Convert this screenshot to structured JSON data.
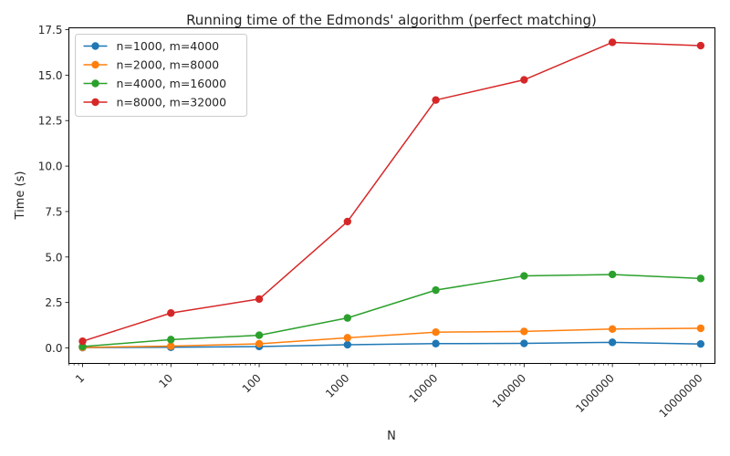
{
  "chart_data": {
    "type": "line",
    "title": "Running time of the Edmonds' algorithm (perfect matching)",
    "xlabel": "N",
    "ylabel": "Time (s)",
    "xscale": "log",
    "xlim": [
      0.7,
      14500000
    ],
    "ylim": [
      -0.85,
      17.6
    ],
    "x": [
      1,
      10,
      100,
      1000,
      10000,
      100000,
      1000000,
      10000000
    ],
    "x_tick_labels": [
      "1",
      "10",
      "100",
      "1000",
      "10000",
      "100000",
      "1000000",
      "10000000"
    ],
    "y_ticks": [
      0.0,
      2.5,
      5.0,
      7.5,
      10.0,
      12.5,
      15.0,
      17.5
    ],
    "y_tick_labels": [
      "0.0",
      "2.5",
      "5.0",
      "7.5",
      "10.0",
      "12.5",
      "15.0",
      "17.5"
    ],
    "legend_position": "top-left",
    "grid": false,
    "series": [
      {
        "name": "n=1000, m=4000",
        "color": "#1f77b4",
        "values": [
          0.02,
          0.04,
          0.08,
          0.18,
          0.24,
          0.25,
          0.31,
          0.22
        ]
      },
      {
        "name": "n=2000, m=8000",
        "color": "#ff7f0e",
        "values": [
          0.03,
          0.1,
          0.23,
          0.56,
          0.87,
          0.91,
          1.04,
          1.08
        ]
      },
      {
        "name": "n=4000, m=16000",
        "color": "#2ca02c",
        "values": [
          0.08,
          0.46,
          0.7,
          1.65,
          3.18,
          3.96,
          4.04,
          3.82
        ]
      },
      {
        "name": "n=8000, m=32000",
        "color": "#d62728",
        "values": [
          0.37,
          1.92,
          2.69,
          6.95,
          13.63,
          14.74,
          16.8,
          16.62
        ]
      }
    ]
  }
}
